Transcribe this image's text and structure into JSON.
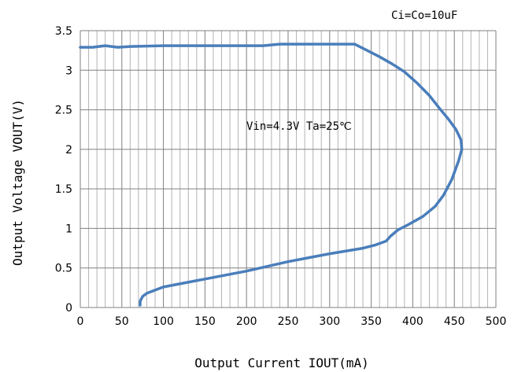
{
  "chart_data": {
    "type": "line",
    "xlabel": "Output Current IOUT(mA)",
    "ylabel": "Output Voltage VOUT(V)",
    "xlim": [
      0,
      500
    ],
    "ylim": [
      0,
      3.5
    ],
    "x_ticks": [
      "0",
      "50",
      "100",
      "150",
      "200",
      "250",
      "300",
      "350",
      "400",
      "450",
      "500"
    ],
    "y_ticks": [
      "0",
      "0.5",
      "1",
      "1.5",
      "2",
      "2.5",
      "3",
      "3.5"
    ],
    "grid": true,
    "annotations": {
      "condition": "Vin=4.3V  Ta=25℃",
      "caps": "Ci=Co=10uF"
    },
    "series": [
      {
        "color": "#4a7ebb",
        "points": [
          [
            0,
            3.29
          ],
          [
            15,
            3.29
          ],
          [
            30,
            3.31
          ],
          [
            45,
            3.29
          ],
          [
            60,
            3.3
          ],
          [
            100,
            3.31
          ],
          [
            200,
            3.31
          ],
          [
            220,
            3.31
          ],
          [
            240,
            3.33
          ],
          [
            300,
            3.33
          ],
          [
            330,
            3.33
          ],
          [
            345,
            3.25
          ],
          [
            360,
            3.17
          ],
          [
            375,
            3.08
          ],
          [
            390,
            2.98
          ],
          [
            405,
            2.84
          ],
          [
            420,
            2.68
          ],
          [
            432,
            2.52
          ],
          [
            443,
            2.38
          ],
          [
            452,
            2.25
          ],
          [
            458,
            2.12
          ],
          [
            459,
            2.0
          ],
          [
            455,
            1.85
          ],
          [
            447,
            1.62
          ],
          [
            437,
            1.42
          ],
          [
            427,
            1.28
          ],
          [
            412,
            1.15
          ],
          [
            395,
            1.05
          ],
          [
            382,
            0.98
          ],
          [
            373,
            0.9
          ],
          [
            368,
            0.84
          ],
          [
            355,
            0.79
          ],
          [
            340,
            0.75
          ],
          [
            300,
            0.68
          ],
          [
            250,
            0.58
          ],
          [
            200,
            0.46
          ],
          [
            150,
            0.36
          ],
          [
            100,
            0.26
          ],
          [
            80,
            0.18
          ],
          [
            75,
            0.14
          ],
          [
            72,
            0.08
          ],
          [
            72,
            0.03
          ]
        ]
      }
    ]
  }
}
